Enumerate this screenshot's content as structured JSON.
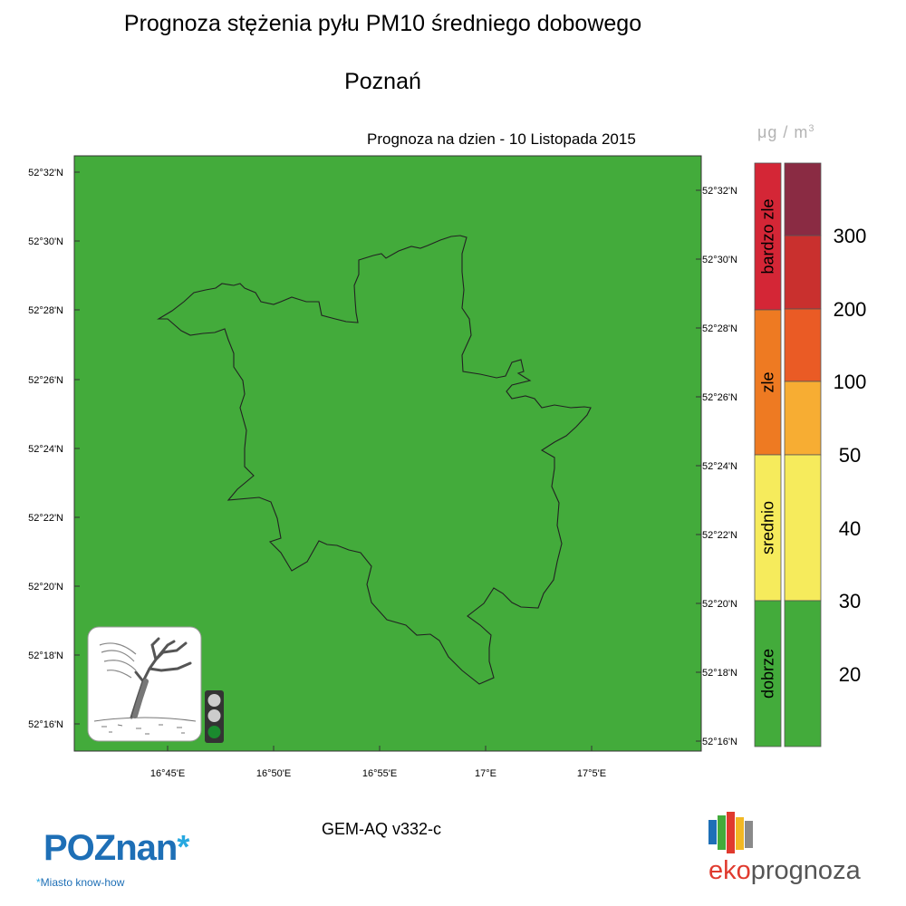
{
  "header": {
    "title": "Prognoza stężenia pyłu PM10 średniego dobowego",
    "city": "Poznań",
    "forecast_date": "Prognoza na dzien -  10 Listopada 2015",
    "unit_symbol": "μg / m",
    "unit_exp": "3"
  },
  "map": {
    "fill_color": "#43ab3b",
    "y_ticks_left": [
      "52°32'N",
      "52°30'N",
      "52°28'N",
      "52°26'N",
      "52°24'N",
      "52°22'N",
      "52°20'N",
      "52°18'N",
      "52°16'N"
    ],
    "y_ticks_right": [
      "52°32'N",
      "52°30'N",
      "52°28'N",
      "52°26'N",
      "52°24'N",
      "52°22'N",
      "52°20'N",
      "52°18'N",
      "52°16'N"
    ],
    "x_ticks": [
      "16°45'E",
      "16°50'E",
      "16°55'E",
      "17°E",
      "17°5'E"
    ]
  },
  "traffic_light": {
    "active": "green",
    "colors": {
      "off": "#cccccc",
      "green": "#1a8a2e"
    }
  },
  "colorbar": {
    "categories": [
      {
        "label": "bardzo zle",
        "color": "#d42636"
      },
      {
        "label": "zle",
        "color": "#ee7a22"
      },
      {
        "label": "srednio",
        "color": "#f6eb5c"
      },
      {
        "label": "dobrze",
        "color": "#43ab3b"
      }
    ],
    "bands": [
      "#8a2b43",
      "#c9302e",
      "#ea5b25",
      "#f7ad33",
      "#f6eb5c",
      "#43ab3b"
    ],
    "levels": [
      "300",
      "200",
      "100",
      "50",
      "40",
      "30",
      "20"
    ]
  },
  "footer": {
    "model": "GEM-AQ v332-c",
    "logo_poznan": "POZnan",
    "logo_poznan_star": "*",
    "logo_poznan_sub_star": "*",
    "logo_poznan_sub": "Miasto know-how",
    "logo_eko_a": "eko",
    "logo_eko_b": "prognoza"
  }
}
